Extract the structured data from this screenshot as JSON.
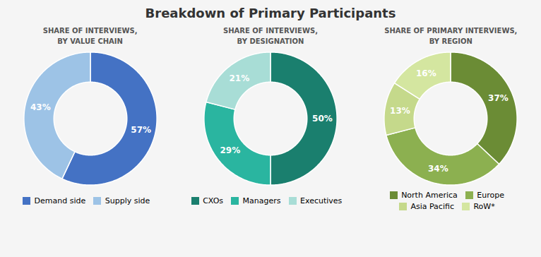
{
  "title": "Breakdown of Primary Participants",
  "chart_data": [
    {
      "type": "pie",
      "title": "SHARE OF INTERVIEWS,\nBY VALUE CHAIN",
      "categories": [
        "Demand side",
        "Supply side"
      ],
      "values": [
        57,
        43
      ],
      "value_labels": [
        "57%",
        "43%"
      ],
      "colors": [
        "#4472c4",
        "#9dc3e6"
      ],
      "data_labels": true,
      "legend": "bottom"
    },
    {
      "type": "pie",
      "title": "SHARE OF INTERVIEWS,\nBY DESIGNATION",
      "categories": [
        "CXOs",
        "Managers",
        "Executives"
      ],
      "values": [
        50,
        29,
        21
      ],
      "value_labels": [
        "50%",
        "29%",
        "21%"
      ],
      "colors": [
        "#1a7f6e",
        "#2ab5a0",
        "#a8ddd6"
      ],
      "data_labels": true,
      "legend": "bottom"
    },
    {
      "type": "pie",
      "title": "SHARE OF PRIMARY INTERVIEWS,\nBY REGION",
      "categories": [
        "North America",
        "Europe",
        "Asia Pacific",
        "RoW*"
      ],
      "values": [
        37,
        34,
        13,
        16
      ],
      "value_labels": [
        "37%",
        "34%",
        "13%",
        "16%"
      ],
      "colors": [
        "#6b8c35",
        "#8cb050",
        "#c5d98b",
        "#d4e6a0"
      ],
      "data_labels": true,
      "legend": "bottom"
    }
  ]
}
